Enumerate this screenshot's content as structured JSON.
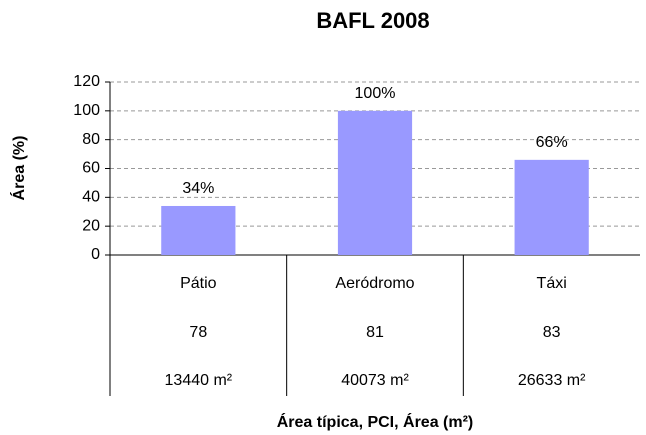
{
  "chart_data": {
    "type": "bar",
    "title": "BAFL 2008",
    "ylabel": "Área (%)",
    "xlabel": "Área típica, PCI, Área (m²)",
    "categories": [
      "Pátio",
      "Aeródromo",
      "Táxi"
    ],
    "values": [
      34,
      100,
      66
    ],
    "value_labels": [
      "34%",
      "100%",
      "66%"
    ],
    "color": "#9999ff",
    "ylim": [
      0,
      120
    ],
    "yticks": [
      0,
      20,
      40,
      60,
      80,
      100,
      120
    ],
    "grid": true,
    "data_table": [
      [
        78,
        81,
        83
      ],
      [
        "13440 m²",
        "40073 m²",
        "26633 m²"
      ]
    ]
  }
}
